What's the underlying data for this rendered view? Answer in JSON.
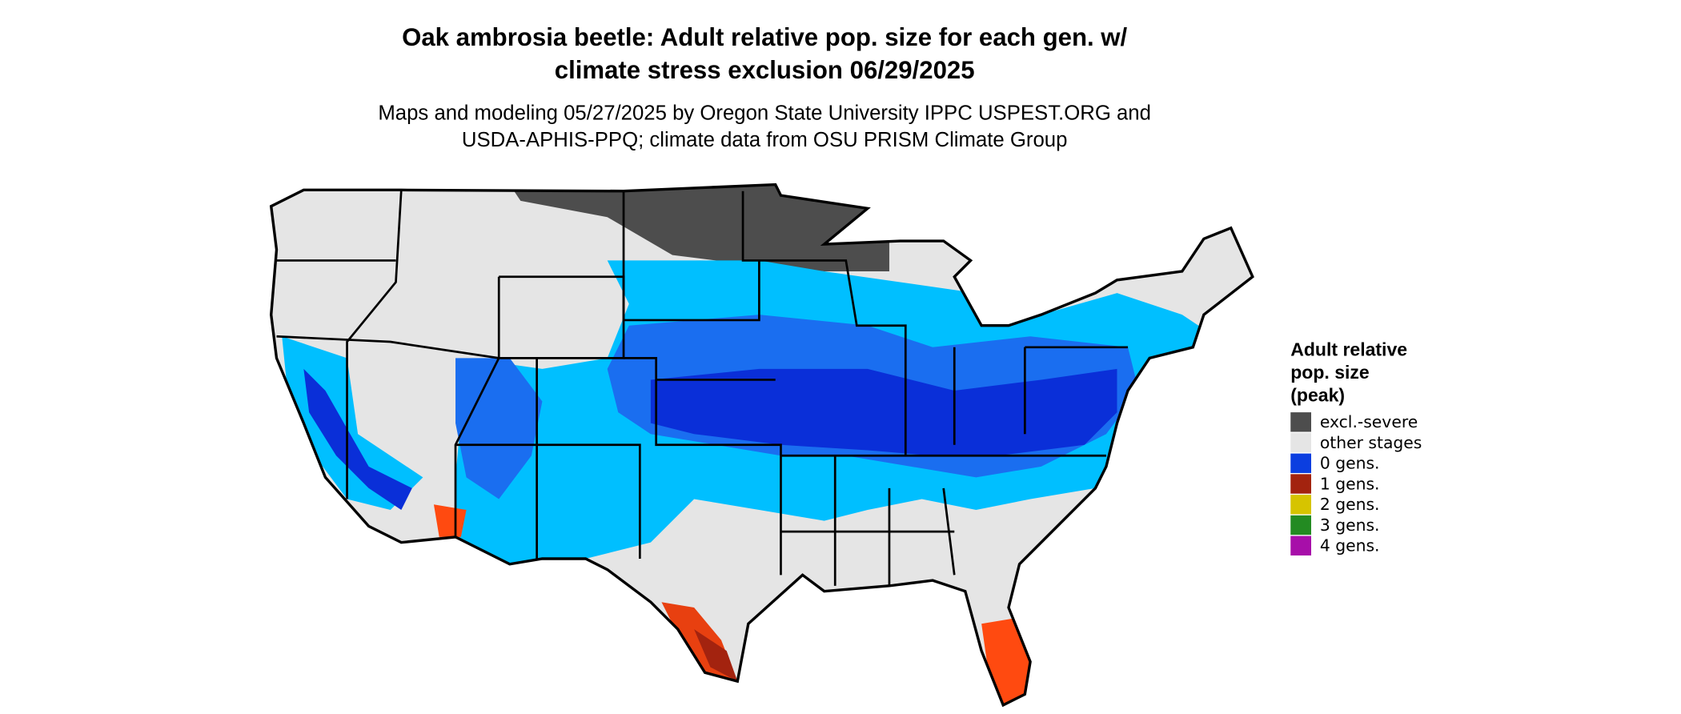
{
  "title_lines": [
    "Oak ambrosia beetle: Adult relative pop. size for each gen. w/",
    "climate stress exclusion 06/29/2025"
  ],
  "subtitle_lines": [
    "Maps and modeling 05/27/2025 by Oregon State University IPPC USPEST.ORG and",
    "USDA-APHIS-PPQ; climate data from OSU PRISM Climate Group"
  ],
  "legend": {
    "title_lines": [
      "Adult relative",
      "pop. size",
      "(peak)"
    ],
    "items": [
      {
        "label": "excl.-severe",
        "color": "#4d4d4d"
      },
      {
        "label": "other stages",
        "color": "#e5e5e5"
      },
      {
        "label": "0 gens.",
        "color": "#0b3ee0"
      },
      {
        "label": "1 gens.",
        "color": "#a3230f"
      },
      {
        "label": "2 gens.",
        "color": "#d6c400"
      },
      {
        "label": "3 gens.",
        "color": "#238b22"
      },
      {
        "label": "4 gens.",
        "color": "#a70fa9"
      }
    ]
  }
}
